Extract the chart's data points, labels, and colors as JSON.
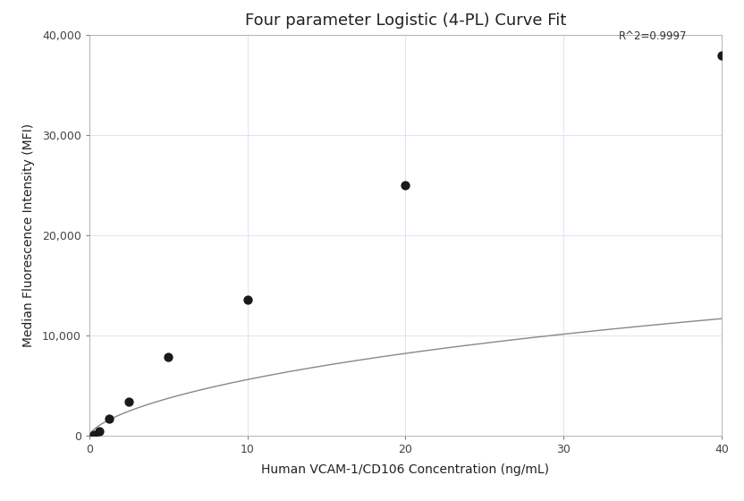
{
  "title": "Four parameter Logistic (4-PL) Curve Fit",
  "xlabel": "Human VCAM-1/CD106 Concentration (ng/mL)",
  "ylabel": "Median Fluorescence Intensity (MFI)",
  "r_squared": "R^2=0.9997",
  "data_x": [
    0.313,
    0.625,
    1.25,
    2.5,
    5.0,
    10.0,
    20.0,
    40.0
  ],
  "data_y": [
    150,
    450,
    1700,
    3400,
    7900,
    13600,
    25000,
    38000
  ],
  "xlim": [
    0,
    40
  ],
  "ylim": [
    0,
    40000
  ],
  "yticks": [
    0,
    10000,
    20000,
    30000,
    40000
  ],
  "xticks": [
    0,
    10,
    20,
    30,
    40
  ],
  "dot_color": "#1a1a1a",
  "dot_size": 55,
  "line_color": "#888888",
  "background_color": "#ffffff",
  "grid_color": "#dde4f0",
  "title_fontsize": 13,
  "label_fontsize": 10,
  "tick_fontsize": 9,
  "annotation_fontsize": 8.5,
  "spine_color": "#aaaaaa"
}
